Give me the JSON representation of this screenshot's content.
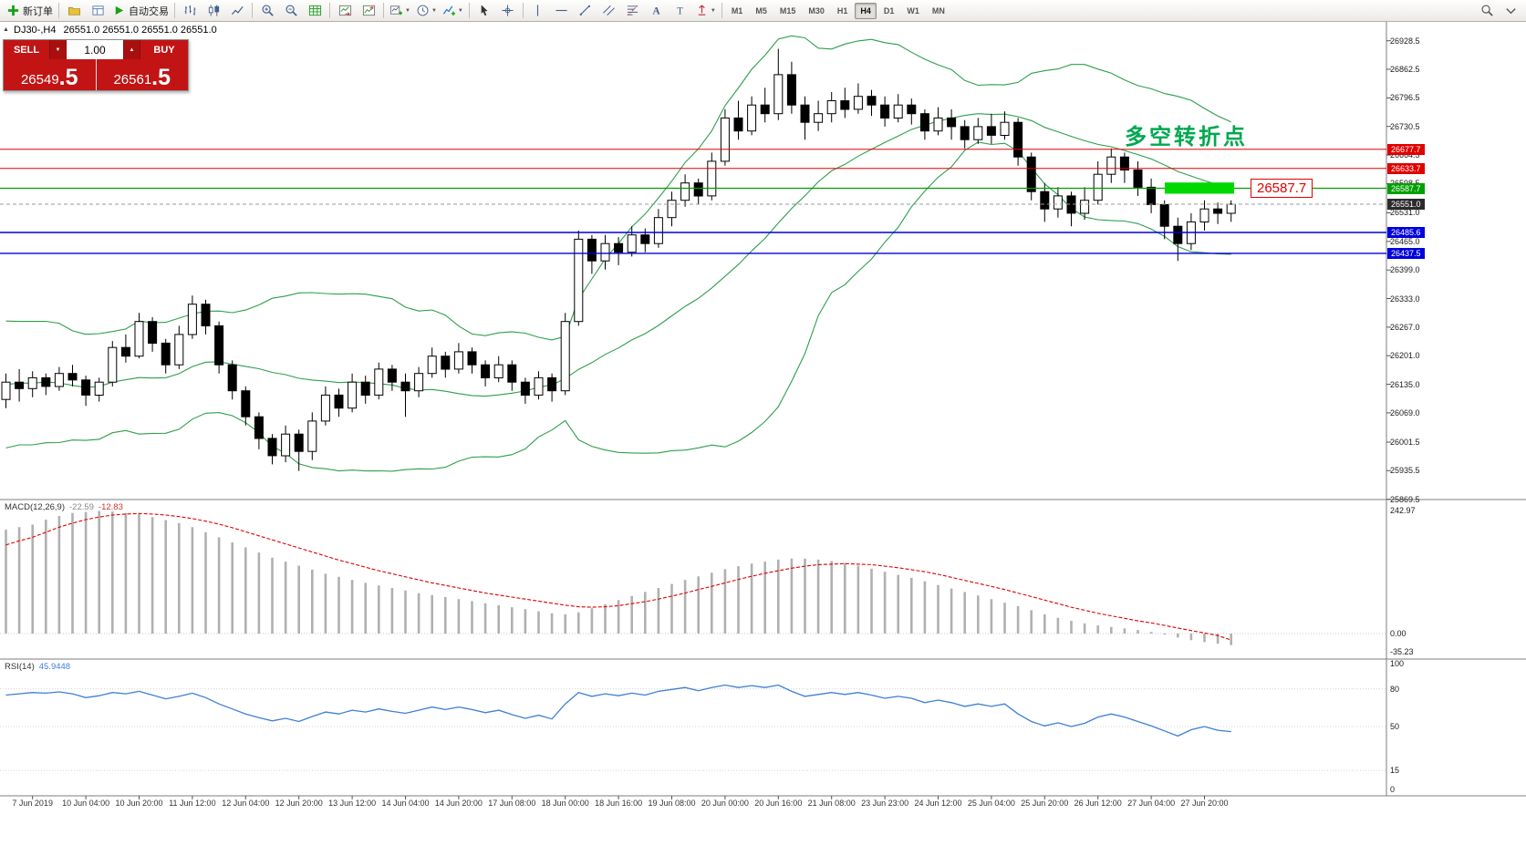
{
  "colors": {
    "bull": "#ffffff",
    "bear": "#000000",
    "wick": "#000000",
    "bollinger": "#2e9e4b",
    "macd_hist": "#b0b0b0",
    "macd_signal": "#e00000",
    "rsi_line": "#3e7fd4",
    "annotation_green": "#00a850",
    "current_tag_bg": "#2b2b2b",
    "highlight_box": "#00d800"
  },
  "toolbar": {
    "groups": [
      {
        "items": [
          {
            "name": "new-order-button",
            "icon": "plus",
            "label": "新订单"
          }
        ]
      },
      {
        "items": [
          {
            "name": "profiles-button",
            "icon": "folder"
          },
          {
            "name": "data-window-button",
            "icon": "datawin"
          },
          {
            "name": "autotrading-button",
            "icon": "play",
            "label": "自动交易"
          }
        ]
      },
      {
        "items": [
          {
            "name": "bar-chart-button",
            "icon": "bars"
          },
          {
            "name": "candlestick-chart-button",
            "icon": "candles"
          },
          {
            "name": "line-chart-button",
            "icon": "linechart"
          }
        ]
      },
      {
        "items": [
          {
            "name": "zoom-in-button",
            "icon": "zoomin"
          },
          {
            "name": "zoom-out-button",
            "icon": "zoomout"
          },
          {
            "name": "grid-button",
            "icon": "grid"
          }
        ]
      },
      {
        "items": [
          {
            "name": "auto-scroll-button",
            "icon": "autoscroll"
          },
          {
            "name": "chart-shift-button",
            "icon": "chartshift"
          }
        ]
      },
      {
        "items": [
          {
            "name": "new-chart-button",
            "icon": "newchart",
            "caret": true
          },
          {
            "name": "periods-button",
            "icon": "clock",
            "caret": true
          },
          {
            "name": "indicators-button",
            "icon": "indicator",
            "caret": true
          }
        ]
      },
      {
        "items": [
          {
            "name": "cursor-button",
            "icon": "cursor"
          },
          {
            "name": "crosshair-button",
            "icon": "crosshair"
          }
        ]
      },
      {
        "items": [
          {
            "name": "vertical-line-button",
            "icon": "vline"
          },
          {
            "name": "horizontal-line-button",
            "icon": "hline"
          },
          {
            "name": "trendline-button",
            "icon": "tline"
          },
          {
            "name": "channel-button",
            "icon": "channel"
          },
          {
            "name": "fibonacci-button",
            "icon": "fib"
          },
          {
            "name": "text-button",
            "icon": "textA"
          },
          {
            "name": "label-button",
            "icon": "textT"
          },
          {
            "name": "arrows-button",
            "icon": "arrow",
            "caret": true
          }
        ]
      }
    ],
    "timeframes": {
      "options": [
        "M1",
        "M5",
        "M15",
        "M30",
        "H1",
        "H4",
        "D1",
        "W1",
        "MN"
      ],
      "active": "H4"
    },
    "right_items": [
      {
        "name": "search-button",
        "icon": "search"
      },
      {
        "name": "toolbar-options-button",
        "icon": "chevron"
      }
    ]
  },
  "quote": {
    "marker": "▲",
    "symbol": "DJ30-,H4",
    "ohlc_text": "26551.0 26551.0 26551.0 26551.0"
  },
  "trade": {
    "sell_label": "SELL",
    "buy_label": "BUY",
    "lot_value": "1.00",
    "sell_price_main": "26549",
    "sell_price_frac": ".5",
    "buy_price_main": "26561",
    "buy_price_frac": ".5"
  },
  "annotation": {
    "text": "多空转折点",
    "callout": "26587.7"
  },
  "chart_data": {
    "type": "candlestick",
    "symbol": "DJ30-",
    "timeframe": "H4",
    "price_axis": {
      "labels": [
        26928.5,
        26862.5,
        26796.5,
        26730.5,
        26664.5,
        26598.5,
        26531.0,
        26465.0,
        26399.0,
        26333.0,
        26267.0,
        26201.0,
        26135.0,
        26069.0,
        26001.5,
        25935.5,
        25869.5
      ]
    },
    "lines": [
      {
        "price": 26677.7,
        "color": "#e00000",
        "width": 1
      },
      {
        "price": 26633.7,
        "color": "#e00000",
        "width": 1
      },
      {
        "price": 26587.7,
        "color": "#00a000",
        "width": 1.2
      },
      {
        "price": 26485.6,
        "color": "#0000dd",
        "width": 1.4
      },
      {
        "price": 26437.5,
        "color": "#0000dd",
        "width": 1.4
      }
    ],
    "current_price": 26551.0,
    "highlight_zone": {
      "price_top": 26601,
      "price_bottom": 26575
    },
    "time_labels": [
      "7 Jun 2019",
      "10 Jun 04:00",
      "10 Jun 20:00",
      "11 Jun 12:00",
      "12 Jun 04:00",
      "12 Jun 20:00",
      "13 Jun 12:00",
      "14 Jun 04:00",
      "14 Jun 20:00",
      "17 Jun 08:00",
      "18 Jun 00:00",
      "18 Jun 16:00",
      "19 Jun 08:00",
      "20 Jun 00:00",
      "20 Jun 16:00",
      "21 Jun 08:00",
      "23 Jun 23:00",
      "24 Jun 12:00",
      "25 Jun 04:00",
      "25 Jun 20:00",
      "26 Jun 12:00",
      "27 Jun 04:00",
      "27 Jun 20:00"
    ],
    "candles": [
      [
        26100,
        26160,
        26080,
        26140
      ],
      [
        26140,
        26170,
        26095,
        26125
      ],
      [
        26125,
        26165,
        26105,
        26150
      ],
      [
        26150,
        26160,
        26110,
        26130
      ],
      [
        26130,
        26175,
        26120,
        26160
      ],
      [
        26160,
        26180,
        26130,
        26145
      ],
      [
        26145,
        26155,
        26085,
        26110
      ],
      [
        26110,
        26150,
        26095,
        26140
      ],
      [
        26140,
        26235,
        26130,
        26220
      ],
      [
        26220,
        26250,
        26185,
        26200
      ],
      [
        26200,
        26300,
        26195,
        26280
      ],
      [
        26280,
        26290,
        26210,
        26230
      ],
      [
        26230,
        26240,
        26160,
        26180
      ],
      [
        26180,
        26270,
        26170,
        26250
      ],
      [
        26250,
        26340,
        26240,
        26320
      ],
      [
        26320,
        26330,
        26250,
        26270
      ],
      [
        26270,
        26280,
        26160,
        26180
      ],
      [
        26180,
        26190,
        26100,
        26120
      ],
      [
        26120,
        26130,
        26040,
        26060
      ],
      [
        26060,
        26070,
        25985,
        26010
      ],
      [
        26010,
        26020,
        25950,
        25970
      ],
      [
        25970,
        26040,
        25955,
        26020
      ],
      [
        26020,
        26030,
        25935,
        25980
      ],
      [
        25980,
        26070,
        25960,
        26050
      ],
      [
        26050,
        26130,
        26040,
        26110
      ],
      [
        26110,
        26125,
        26060,
        26080
      ],
      [
        26080,
        26160,
        26070,
        26140
      ],
      [
        26140,
        26155,
        26090,
        26110
      ],
      [
        26110,
        26185,
        26100,
        26170
      ],
      [
        26170,
        26180,
        26120,
        26140
      ],
      [
        26140,
        26160,
        26060,
        26120
      ],
      [
        26120,
        26175,
        26105,
        26160
      ],
      [
        26160,
        26220,
        26150,
        26200
      ],
      [
        26200,
        26210,
        26150,
        26170
      ],
      [
        26170,
        26230,
        26160,
        26210
      ],
      [
        26210,
        26220,
        26160,
        26180
      ],
      [
        26180,
        26190,
        26130,
        26150
      ],
      [
        26150,
        26200,
        26140,
        26180
      ],
      [
        26180,
        26190,
        26120,
        26140
      ],
      [
        26140,
        26150,
        26090,
        26110
      ],
      [
        26110,
        26165,
        26100,
        26150
      ],
      [
        26150,
        26160,
        26095,
        26120
      ],
      [
        26120,
        26300,
        26110,
        26280
      ],
      [
        26280,
        26490,
        26270,
        26470
      ],
      [
        26470,
        26480,
        26390,
        26420
      ],
      [
        26420,
        26480,
        26400,
        26460
      ],
      [
        26460,
        26475,
        26410,
        26440
      ],
      [
        26440,
        26500,
        26430,
        26480
      ],
      [
        26480,
        26495,
        26440,
        26460
      ],
      [
        26460,
        26540,
        26450,
        26520
      ],
      [
        26520,
        26580,
        26500,
        26560
      ],
      [
        26560,
        26620,
        26545,
        26600
      ],
      [
        26600,
        26610,
        26550,
        26570
      ],
      [
        26570,
        26670,
        26560,
        26650
      ],
      [
        26650,
        26770,
        26640,
        26750
      ],
      [
        26750,
        26790,
        26700,
        26720
      ],
      [
        26720,
        26800,
        26710,
        26780
      ],
      [
        26780,
        26820,
        26740,
        26760
      ],
      [
        26760,
        26910,
        26745,
        26850
      ],
      [
        26850,
        26880,
        26760,
        26780
      ],
      [
        26780,
        26800,
        26700,
        26740
      ],
      [
        26740,
        26790,
        26720,
        26760
      ],
      [
        26760,
        26810,
        26740,
        26790
      ],
      [
        26790,
        26820,
        26750,
        26770
      ],
      [
        26770,
        26830,
        26760,
        26800
      ],
      [
        26800,
        26815,
        26755,
        26780
      ],
      [
        26780,
        26800,
        26730,
        26750
      ],
      [
        26750,
        26805,
        26740,
        26780
      ],
      [
        26780,
        26795,
        26735,
        26760
      ],
      [
        26760,
        26770,
        26700,
        26720
      ],
      [
        26720,
        26775,
        26710,
        26750
      ],
      [
        26750,
        26770,
        26700,
        26730
      ],
      [
        26730,
        26745,
        26680,
        26700
      ],
      [
        26700,
        26750,
        26690,
        26730
      ],
      [
        26730,
        26760,
        26690,
        26710
      ],
      [
        26710,
        26765,
        26700,
        26740
      ],
      [
        26740,
        26750,
        26640,
        26660
      ],
      [
        26660,
        26670,
        26560,
        26580
      ],
      [
        26580,
        26600,
        26510,
        26540
      ],
      [
        26540,
        26590,
        26520,
        26570
      ],
      [
        26570,
        26580,
        26500,
        26530
      ],
      [
        26530,
        26590,
        26515,
        26560
      ],
      [
        26560,
        26650,
        26550,
        26620
      ],
      [
        26620,
        26680,
        26600,
        26660
      ],
      [
        26660,
        26670,
        26600,
        26630
      ],
      [
        26630,
        26650,
        26570,
        26590
      ],
      [
        26590,
        26610,
        26530,
        26550
      ],
      [
        26550,
        26560,
        26470,
        26500
      ],
      [
        26500,
        26520,
        26420,
        26460
      ],
      [
        26460,
        26530,
        26445,
        26510
      ],
      [
        26510,
        26560,
        26490,
        26540
      ],
      [
        26540,
        26555,
        26505,
        26530
      ],
      [
        26530,
        26560,
        26510,
        26551
      ]
    ],
    "bollinger": {
      "period": 20,
      "deviation": 2,
      "warmup_closes": [
        25980,
        26060,
        26150,
        26080,
        26200,
        26260,
        26200,
        26100,
        26020,
        26090,
        26180,
        26250,
        26170,
        26060,
        25990,
        26070,
        26160,
        26230,
        26160,
        26120
      ]
    },
    "macd": {
      "title": "MACD(12,26,9)",
      "value_hist": "-22.59",
      "value_signal": "-12.83",
      "axis_labels": [
        242.97,
        0.0,
        -35.23
      ],
      "histogram": [
        205,
        210,
        215,
        225,
        232,
        238,
        240,
        242,
        241,
        238,
        236,
        230,
        224,
        218,
        210,
        200,
        190,
        180,
        170,
        160,
        150,
        142,
        134,
        126,
        118,
        112,
        106,
        100,
        95,
        90,
        85,
        80,
        76,
        72,
        68,
        64,
        60,
        56,
        52,
        48,
        44,
        40,
        38,
        42,
        50,
        58,
        66,
        74,
        82,
        90,
        98,
        106,
        113,
        120,
        127,
        133,
        138,
        142,
        146,
        148,
        148,
        146,
        143,
        139,
        134,
        128,
        122,
        116,
        110,
        103,
        96,
        89,
        82,
        75,
        68,
        61,
        54,
        46,
        38,
        31,
        25,
        20,
        16,
        13,
        10,
        7,
        3,
        -2,
        -8,
        -13,
        -17,
        -20,
        -22.59
      ],
      "signal": [
        175,
        183,
        190,
        200,
        210,
        218,
        225,
        230,
        234,
        236,
        237,
        236,
        234,
        231,
        227,
        222,
        216,
        209,
        201,
        193,
        185,
        177,
        169,
        161,
        153,
        145,
        138,
        131,
        124,
        118,
        112,
        106,
        100,
        95,
        90,
        85,
        80,
        76,
        72,
        68,
        64,
        60,
        56,
        53,
        52,
        53,
        55,
        59,
        63,
        68,
        74,
        80,
        87,
        93,
        100,
        107,
        113,
        119,
        124,
        129,
        133,
        136,
        137,
        138,
        137,
        136,
        133,
        130,
        126,
        122,
        117,
        111,
        105,
        99,
        93,
        87,
        80,
        73,
        66,
        59,
        52,
        46,
        40,
        35,
        30,
        25,
        21,
        16,
        11,
        6,
        1,
        -4,
        -12.83
      ]
    },
    "rsi": {
      "title": "RSI(14)",
      "value": "45.9448",
      "axis_labels": [
        100,
        80,
        50,
        15,
        0
      ],
      "values": [
        75,
        76,
        77,
        76.5,
        77.5,
        76,
        73,
        74.5,
        77,
        76,
        78,
        75,
        72,
        74,
        76.5,
        73,
        68,
        64,
        60,
        57,
        54.5,
        56.5,
        54,
        58,
        61.5,
        60,
        63,
        61.5,
        64,
        62,
        60.5,
        63,
        65.5,
        63.5,
        65.5,
        63.5,
        61,
        63,
        59.5,
        56.5,
        59,
        56,
        68,
        77,
        74,
        76,
        74.5,
        76.5,
        75,
        78,
        79.5,
        81,
        78.5,
        81,
        83,
        81,
        82.5,
        81,
        83,
        78,
        74,
        75.5,
        77,
        75.5,
        77,
        75,
        72.5,
        74,
        72.5,
        69,
        71,
        69,
        66,
        68,
        66,
        68,
        60,
        54,
        50.5,
        53,
        50,
        52.5,
        57.5,
        60,
        57.5,
        54,
        50.5,
        46.5,
        42.5,
        47.5,
        50,
        47,
        45.9448
      ]
    }
  }
}
